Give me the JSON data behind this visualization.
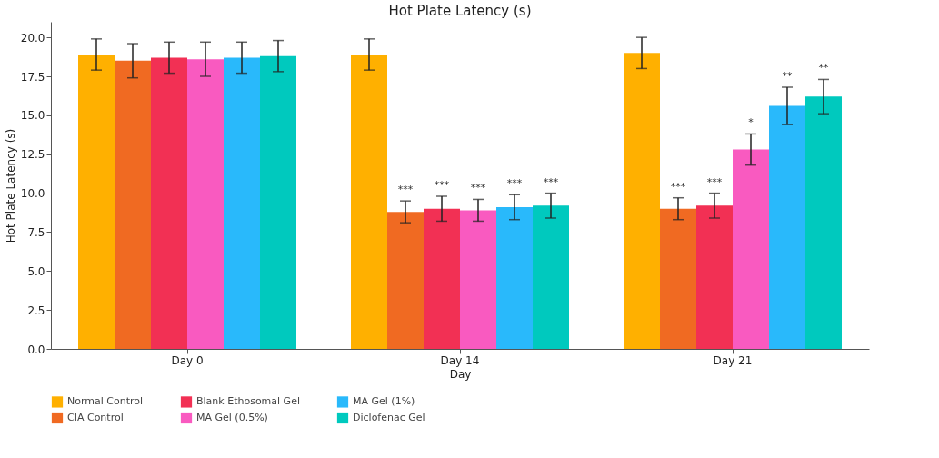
{
  "chart_data": {
    "type": "bar",
    "title": "Hot Plate Latency (s)",
    "xlabel": "Day",
    "ylabel": "Hot Plate Latency (s)",
    "categories": [
      "Day 0",
      "Day 14",
      "Day 21"
    ],
    "series": [
      {
        "name": "Normal Control",
        "color": "#ffb000",
        "values": [
          18.9,
          18.9,
          19.0
        ],
        "errors": [
          1.0,
          1.0,
          1.0
        ],
        "value_labels": [
          null,
          null,
          null
        ]
      },
      {
        "name": "CIA Control",
        "color": "#f06a22",
        "values": [
          18.5,
          8.8,
          9.0
        ],
        "errors": [
          1.1,
          0.7,
          0.7
        ],
        "value_labels": [
          null,
          "***",
          "***"
        ]
      },
      {
        "name": "Blank Ethosomal Gel",
        "color": "#f23054",
        "values": [
          18.7,
          9.0,
          9.2
        ],
        "errors": [
          1.0,
          0.8,
          0.8
        ],
        "value_labels": [
          null,
          "***",
          "***"
        ]
      },
      {
        "name": "MA Gel (0.5%)",
        "color": "#f95ac0",
        "values": [
          18.6,
          8.9,
          12.8
        ],
        "errors": [
          1.1,
          0.7,
          1.0
        ],
        "value_labels": [
          null,
          "***",
          "*"
        ]
      },
      {
        "name": "MA Gel (1%)",
        "color": "#29b9fb",
        "values": [
          18.7,
          9.1,
          15.6
        ],
        "errors": [
          1.0,
          0.8,
          1.2
        ],
        "value_labels": [
          null,
          "***",
          "**"
        ]
      },
      {
        "name": "Diclofenac Gel",
        "color": "#00c9be",
        "values": [
          18.8,
          9.2,
          16.2
        ],
        "errors": [
          1.0,
          0.8,
          1.1
        ],
        "value_labels": [
          null,
          "***",
          "**"
        ]
      }
    ],
    "ylim": [
      0,
      21
    ],
    "yticks": [
      {
        "value": 0,
        "label": "0.0"
      },
      {
        "value": 2.5,
        "label": "2.5"
      },
      {
        "value": 5,
        "label": "5.0"
      },
      {
        "value": 7.5,
        "label": "7.5"
      },
      {
        "value": 10,
        "label": "10.0"
      },
      {
        "value": 12.5,
        "label": "12.5"
      },
      {
        "value": 15,
        "label": "15.0"
      },
      {
        "value": 17.5,
        "label": "17.5"
      },
      {
        "value": 20,
        "label": "20.0"
      }
    ],
    "grid": false,
    "legend": "bottom"
  }
}
